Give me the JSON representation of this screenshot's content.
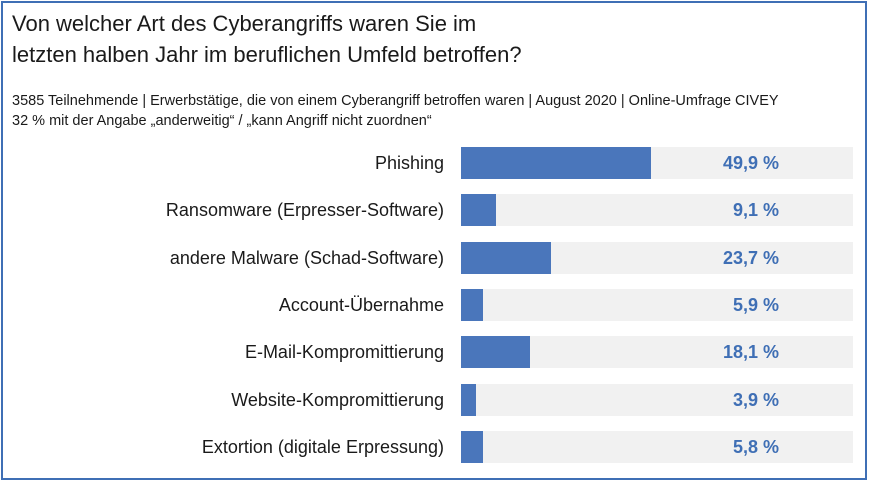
{
  "header": {
    "title_line1": "Von welcher Art des Cyberangriffs waren Sie im",
    "title_line2": "letzten halben Jahr im beruflichen Umfeld betroffen?",
    "subtitle_line1": "3585 Teilnehmende | Erwerbstätige, die von einem Cyberangriff betroffen waren | August 2020 | Online-Umfrage CIVEY",
    "subtitle_line2": "32 % mit der Angabe „anderweitig“ /  „kann Angriff nicht zuordnen“"
  },
  "colors": {
    "bar": "#4a76bb",
    "value_text": "#3f6fb5",
    "track": "#f1f1f1",
    "border": "#3f6fb5"
  },
  "chart_data": {
    "type": "bar",
    "orientation": "horizontal",
    "categories": [
      "Phishing",
      "Ransomware (Erpresser-Software)",
      "andere Malware (Schad-Software)",
      "Account-Übernahme",
      "E-Mail-Kompromittierung",
      "Website-Kompromittierung",
      "Extortion (digitale Erpressung)"
    ],
    "values": [
      49.9,
      9.1,
      23.7,
      5.9,
      18.1,
      3.9,
      5.8
    ],
    "value_labels": [
      "49,9 %",
      "9,1 %",
      "23,7 %",
      "5,9 %",
      "18,1 %",
      "3,9 %",
      "5,8 %"
    ],
    "xlim": [
      0,
      100
    ],
    "grid": false
  }
}
